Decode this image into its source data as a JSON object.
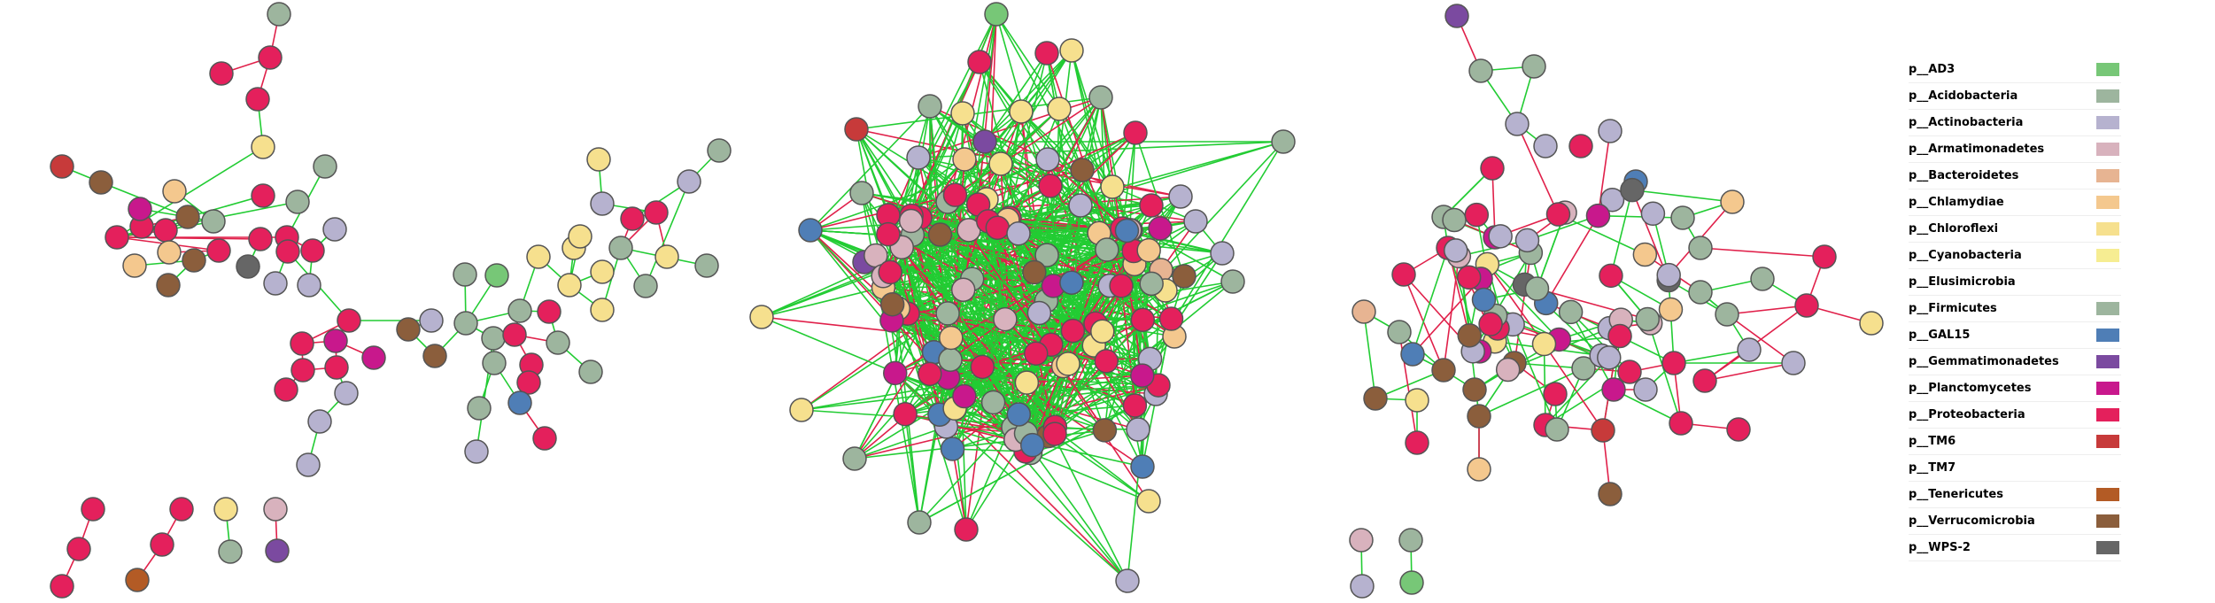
{
  "colors": {
    "edge_positive": "#22cc33",
    "edge_negative": "#e0204a",
    "node_stroke": "#555555"
  },
  "legend": [
    {
      "label": "p__AD3",
      "color": "#77c777"
    },
    {
      "label": "p__Acidobacteria",
      "color": "#9db59e"
    },
    {
      "label": "p__Actinobacteria",
      "color": "#b6b2cf"
    },
    {
      "label": "p__Armatimonadetes",
      "color": "#d8b2bd"
    },
    {
      "label": "p__Bacteroidetes",
      "color": "#e7b492"
    },
    {
      "label": "p__Chlamydiae",
      "color": "#f4c88e"
    },
    {
      "label": "p__Chloroflexi",
      "color": "#f6e08e"
    },
    {
      "label": "p__Cyanobacteria",
      "color": "#f6ed92"
    },
    {
      "label": "p__Elusimicrobia",
      "color": ""
    },
    {
      "label": "p__Firmicutes",
      "color": "#9db59e"
    },
    {
      "label": "p__GAL15",
      "color": "#4f7eb6"
    },
    {
      "label": "p__Gemmatimonadetes",
      "color": "#7b4aa0"
    },
    {
      "label": "p__Planctomycetes",
      "color": "#c8188c"
    },
    {
      "label": "p__Proteobacteria",
      "color": "#e4205c"
    },
    {
      "label": "p__TM6",
      "color": "#c73a3a"
    },
    {
      "label": "p__TM7",
      "color": ""
    },
    {
      "label": "p__Tenericutes",
      "color": "#b35b25"
    },
    {
      "label": "p__Verrucomicrobia",
      "color": "#8b5e3c"
    },
    {
      "label": "p__WPS-2",
      "color": "#666666"
    }
  ]
}
